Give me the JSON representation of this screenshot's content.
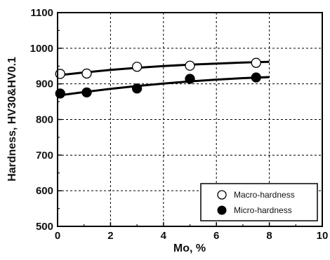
{
  "chart_data": {
    "type": "scatter",
    "title": "",
    "xlabel": "Mo, %",
    "ylabel": "Hardness, HV30&HV0.1",
    "xlim": [
      0,
      10
    ],
    "ylim": [
      500,
      1100
    ],
    "xticks": [
      0,
      2,
      4,
      6,
      8,
      10
    ],
    "yticks": [
      500,
      600,
      700,
      800,
      900,
      1000,
      1100
    ],
    "grid": true,
    "legend_position": "bottom-right",
    "series": [
      {
        "name": "Macro-hardness",
        "marker": "open-circle",
        "points": [
          {
            "x": 0.1,
            "y": 928
          },
          {
            "x": 1.1,
            "y": 929
          },
          {
            "x": 3.0,
            "y": 948
          },
          {
            "x": 5.0,
            "y": 951
          },
          {
            "x": 7.5,
            "y": 959
          }
        ],
        "fit": [
          {
            "x": 0.0,
            "y": 924
          },
          {
            "x": 1.0,
            "y": 932
          },
          {
            "x": 2.0,
            "y": 939
          },
          {
            "x": 3.0,
            "y": 945
          },
          {
            "x": 4.0,
            "y": 950
          },
          {
            "x": 5.0,
            "y": 954
          },
          {
            "x": 6.0,
            "y": 957
          },
          {
            "x": 7.0,
            "y": 960
          },
          {
            "x": 8.0,
            "y": 962
          }
        ]
      },
      {
        "name": "Micro-hardness",
        "marker": "filled-circle",
        "points": [
          {
            "x": 0.1,
            "y": 873
          },
          {
            "x": 1.1,
            "y": 876
          },
          {
            "x": 3.0,
            "y": 887
          },
          {
            "x": 5.0,
            "y": 914
          },
          {
            "x": 7.5,
            "y": 918
          }
        ],
        "fit": [
          {
            "x": 0.0,
            "y": 867
          },
          {
            "x": 1.0,
            "y": 877
          },
          {
            "x": 2.0,
            "y": 886
          },
          {
            "x": 3.0,
            "y": 894
          },
          {
            "x": 4.0,
            "y": 901
          },
          {
            "x": 5.0,
            "y": 907
          },
          {
            "x": 6.0,
            "y": 912
          },
          {
            "x": 7.0,
            "y": 916
          },
          {
            "x": 8.0,
            "y": 919
          }
        ]
      }
    ]
  }
}
